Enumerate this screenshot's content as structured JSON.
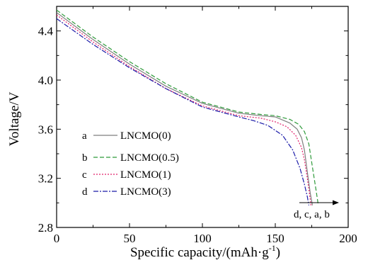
{
  "chart_data": {
    "type": "line",
    "xlabel": "Specific capacity/(mAh·g⁻¹)",
    "xlabel_main": "Specific capacity/(mAh·g",
    "xlabel_sup": "-1",
    "xlabel_close": ")",
    "ylabel": "Voltage/V",
    "xlim": [
      0,
      200
    ],
    "ylim": [
      2.8,
      4.6
    ],
    "xticks": [
      "0",
      "50",
      "100",
      "150",
      "200"
    ],
    "yticks": [
      "2.8",
      "3.2",
      "3.6",
      "4.0",
      "4.4"
    ],
    "grid": false,
    "legend_position": "lower-left",
    "annotation": "d, c, a, b",
    "series": [
      {
        "name": "LNCMO(0)",
        "letter": "a",
        "color": "#7f7f7f",
        "dash": "",
        "x": [
          0,
          25,
          50,
          75,
          100,
          125,
          140,
          150,
          160,
          165,
          168,
          170,
          172,
          174,
          175.5
        ],
        "y": [
          4.55,
          4.33,
          4.13,
          3.95,
          3.81,
          3.73,
          3.71,
          3.7,
          3.65,
          3.6,
          3.53,
          3.43,
          3.25,
          3.08,
          2.98
        ]
      },
      {
        "name": "LNCMO(0.5)",
        "letter": "b",
        "color": "#2e9a3a",
        "dash": "6,3",
        "x": [
          0,
          25,
          50,
          75,
          100,
          125,
          140,
          150,
          160,
          166,
          170,
          173,
          176,
          178,
          179.5
        ],
        "y": [
          4.57,
          4.35,
          4.15,
          3.97,
          3.82,
          3.74,
          3.72,
          3.71,
          3.68,
          3.64,
          3.58,
          3.48,
          3.25,
          3.1,
          2.98
        ]
      },
      {
        "name": "LNCMO(1)",
        "letter": "c",
        "color": "#e0206a",
        "dash": "2,2",
        "x": [
          0,
          25,
          50,
          75,
          100,
          125,
          140,
          150,
          158,
          164,
          168,
          170,
          172,
          173.5,
          174.5
        ],
        "y": [
          4.53,
          4.31,
          4.11,
          3.93,
          3.79,
          3.71,
          3.69,
          3.66,
          3.62,
          3.55,
          3.45,
          3.35,
          3.2,
          3.07,
          2.98
        ]
      },
      {
        "name": "LNCMO(3)",
        "letter": "d",
        "color": "#1a1aa8",
        "dash": "7,2,2,2",
        "x": [
          0,
          25,
          50,
          75,
          100,
          125,
          135,
          145,
          155,
          162,
          167,
          170,
          172,
          173
        ],
        "y": [
          4.5,
          4.29,
          4.1,
          3.93,
          3.78,
          3.7,
          3.67,
          3.63,
          3.55,
          3.43,
          3.28,
          3.15,
          3.05,
          2.98
        ]
      }
    ]
  }
}
